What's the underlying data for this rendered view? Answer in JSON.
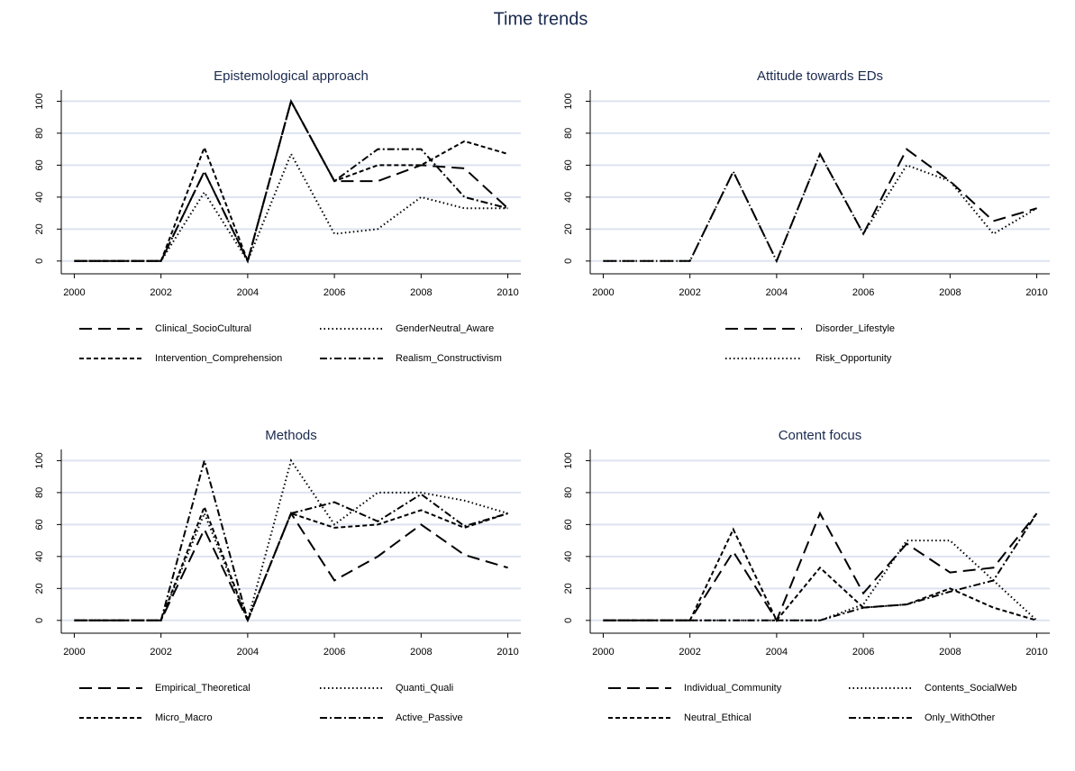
{
  "title": "Time trends",
  "chart_data": [
    {
      "type": "line",
      "title": "Epistemological approach",
      "x": [
        2000,
        2001,
        2002,
        2003,
        2004,
        2005,
        2006,
        2007,
        2008,
        2009,
        2010
      ],
      "xlim": [
        1999.7,
        2010.3
      ],
      "xticks": [
        2000,
        2002,
        2004,
        2006,
        2008,
        2010
      ],
      "ylim": [
        -8,
        107
      ],
      "yticks": [
        0,
        20,
        40,
        60,
        80,
        100
      ],
      "grid": true,
      "series": [
        {
          "name": "Clinical_SocioCultural",
          "color": "#000000",
          "dash": "14 7",
          "values": [
            0,
            0,
            0,
            56,
            0,
            100,
            50,
            50,
            60,
            58,
            33
          ]
        },
        {
          "name": "GenderNeutral_Aware",
          "color": "#000000",
          "dash": "1.5 3",
          "values": [
            0,
            0,
            0,
            43,
            0,
            67,
            17,
            20,
            40,
            33,
            33
          ]
        },
        {
          "name": "Intervention_Comprehension",
          "color": "#000000",
          "dash": "5 3",
          "values": [
            0,
            0,
            0,
            71,
            0,
            100,
            50,
            60,
            60,
            75,
            67
          ]
        },
        {
          "name": "Realism_Constructivism",
          "color": "#000000",
          "dash": "8 3 2 3",
          "values": [
            0,
            0,
            0,
            56,
            0,
            100,
            50,
            70,
            70,
            40,
            33
          ]
        }
      ]
    },
    {
      "type": "line",
      "title": "Attitude towards EDs",
      "x": [
        2000,
        2001,
        2002,
        2003,
        2004,
        2005,
        2006,
        2007,
        2008,
        2009,
        2010
      ],
      "xlim": [
        1999.7,
        2010.3
      ],
      "xticks": [
        2000,
        2002,
        2004,
        2006,
        2008,
        2010
      ],
      "ylim": [
        -8,
        107
      ],
      "yticks": [
        0,
        20,
        40,
        60,
        80,
        100
      ],
      "grid": true,
      "series": [
        {
          "name": "Disorder_Lifestyle",
          "color": "#000000",
          "dash": "14 7",
          "values": [
            0,
            0,
            0,
            56,
            0,
            67,
            17,
            70,
            50,
            25,
            33
          ]
        },
        {
          "name": "Risk_Opportunity",
          "color": "#000000",
          "dash": "1.5 3",
          "values": [
            0,
            0,
            0,
            56,
            0,
            67,
            17,
            60,
            50,
            17,
            33
          ]
        }
      ]
    },
    {
      "type": "line",
      "title": "Methods",
      "x": [
        2000,
        2001,
        2002,
        2003,
        2004,
        2005,
        2006,
        2007,
        2008,
        2009,
        2010
      ],
      "xlim": [
        1999.7,
        2010.3
      ],
      "xticks": [
        2000,
        2002,
        2004,
        2006,
        2008,
        2010
      ],
      "ylim": [
        -8,
        107
      ],
      "yticks": [
        0,
        20,
        40,
        60,
        80,
        100
      ],
      "grid": true,
      "series": [
        {
          "name": "Empirical_Theoretical",
          "color": "#000000",
          "dash": "14 7",
          "values": [
            0,
            0,
            0,
            57,
            0,
            67,
            25,
            40,
            60,
            41,
            33
          ]
        },
        {
          "name": "Quanti_Quali",
          "color": "#000000",
          "dash": "1.5 3",
          "values": [
            0,
            0,
            0,
            67,
            0,
            100,
            60,
            80,
            80,
            75,
            67
          ]
        },
        {
          "name": "Micro_Macro",
          "color": "#000000",
          "dash": "5 3",
          "values": [
            0,
            0,
            0,
            71,
            0,
            67,
            58,
            60,
            69,
            58,
            67
          ]
        },
        {
          "name": "Active_Passive",
          "color": "#000000",
          "dash": "8 3 2 3",
          "values": [
            0,
            0,
            0,
            100,
            0,
            67,
            74,
            62,
            79,
            59,
            67
          ]
        }
      ]
    },
    {
      "type": "line",
      "title": "Content focus",
      "x": [
        2000,
        2001,
        2002,
        2003,
        2004,
        2005,
        2006,
        2007,
        2008,
        2009,
        2010
      ],
      "xlim": [
        1999.7,
        2010.3
      ],
      "xticks": [
        2000,
        2002,
        2004,
        2006,
        2008,
        2010
      ],
      "ylim": [
        -8,
        107
      ],
      "yticks": [
        0,
        20,
        40,
        60,
        80,
        100
      ],
      "grid": true,
      "series": [
        {
          "name": "Individual_Community",
          "color": "#000000",
          "dash": "14 7",
          "values": [
            0,
            0,
            0,
            43,
            0,
            67,
            17,
            48,
            30,
            33,
            67
          ]
        },
        {
          "name": "Contents_SocialWeb",
          "color": "#000000",
          "dash": "1.5 3",
          "values": [
            0,
            0,
            0,
            0,
            0,
            0,
            10,
            50,
            50,
            25,
            0
          ]
        },
        {
          "name": "Neutral_Ethical",
          "color": "#000000",
          "dash": "5 3",
          "values": [
            0,
            0,
            0,
            57,
            0,
            33,
            8,
            10,
            20,
            8,
            0
          ]
        },
        {
          "name": "Only_WithOther",
          "color": "#000000",
          "dash": "8 3 2 3",
          "values": [
            0,
            0,
            0,
            0,
            0,
            0,
            8,
            10,
            18,
            25,
            67
          ]
        }
      ]
    }
  ]
}
